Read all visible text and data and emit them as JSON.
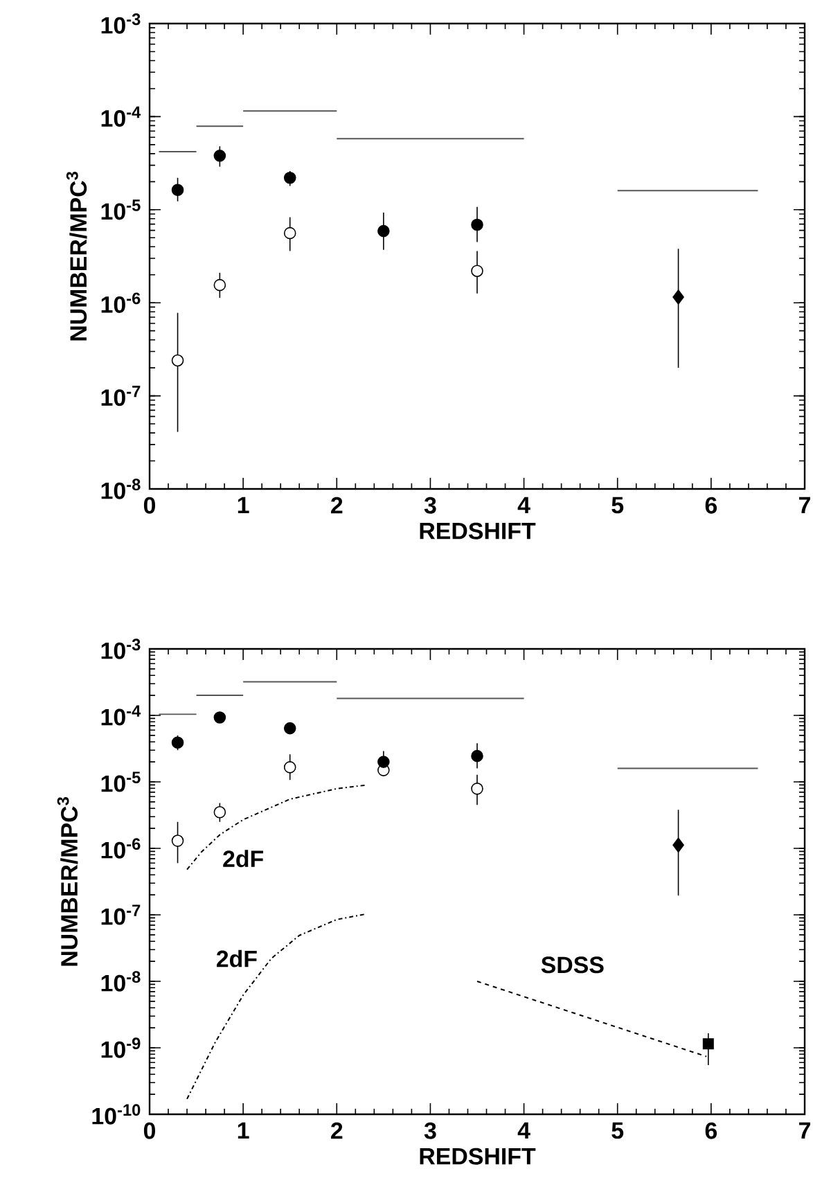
{
  "chart_data": [
    {
      "type": "scatter",
      "xlabel": "REDSHIFT",
      "ylabel": "NUMBER/MPC$^{3}$",
      "log": "y",
      "xlim": [
        0,
        7
      ],
      "xticks": [
        0,
        1,
        2,
        3,
        4,
        5,
        6,
        7
      ],
      "ylim": [
        1e-08,
        0.001
      ],
      "yticks": [
        {
          "value": 1e-08,
          "label": "10$^{-8}$"
        },
        {
          "value": 1e-07,
          "label": "10$^{-7}$"
        },
        {
          "value": 1e-06,
          "label": "10$^{-6}$"
        },
        {
          "value": 1e-05,
          "label": "10$^{-5}$"
        },
        {
          "value": 0.0001,
          "label": "10$^{-4}$"
        },
        {
          "value": 0.001,
          "label": "10$^{-3}$"
        }
      ],
      "series": [
        {
          "type": "line",
          "marker": "none",
          "color": "#555555",
          "x": [
            0.1,
            0.5
          ],
          "values": [
            4.2e-05,
            4.2e-05
          ]
        },
        {
          "type": "line",
          "marker": "none",
          "color": "#555555",
          "x": [
            0.5,
            1.0
          ],
          "values": [
            7.9e-05,
            7.9e-05
          ]
        },
        {
          "type": "line",
          "marker": "none",
          "color": "#555555",
          "x": [
            1.0,
            2.0
          ],
          "values": [
            0.000115,
            0.000115
          ]
        },
        {
          "type": "line",
          "marker": "none",
          "color": "#555555",
          "x": [
            2.0,
            4.0
          ],
          "values": [
            5.8e-05,
            5.8e-05
          ]
        },
        {
          "type": "line",
          "marker": "none",
          "color": "#555555",
          "x": [
            5.0,
            6.5
          ],
          "values": [
            1.6e-05,
            1.6e-05
          ]
        },
        {
          "marker": "circle",
          "color": "#ffffff",
          "x": [
            0.3,
            0.75,
            1.5,
            2.5,
            3.5
          ],
          "values": [
            2.4e-07,
            1.55e-06,
            5.6e-06,
            null,
            2.2e-06
          ],
          "errors": [
            [
              4.1e-08,
              7.8e-07
            ],
            [
              1.13e-06,
              2.1e-06
            ],
            [
              3.6e-06,
              8.3e-06
            ],
            null,
            [
              1.26e-06,
              3.6e-06
            ]
          ]
        },
        {
          "marker": "circle",
          "color": "#000000",
          "x": [
            0.3,
            0.75,
            1.5,
            2.5,
            3.5
          ],
          "values": [
            1.63e-05,
            3.8e-05,
            2.2e-05,
            5.9e-06,
            6.9e-06
          ],
          "errors": [
            [
              1.23e-05,
              2.2e-05
            ],
            [
              2.9e-05,
              4.8e-05
            ],
            [
              1.8e-05,
              2.6e-05
            ],
            [
              3.7e-06,
              9.3e-06
            ],
            [
              4.5e-06,
              1.07e-05
            ]
          ]
        },
        {
          "marker": "diamond",
          "color": "#000000",
          "x": [
            5.65
          ],
          "values": [
            1.15e-06
          ],
          "errors": [
            [
              2e-07,
              3.8e-06
            ]
          ]
        }
      ]
    },
    {
      "type": "scatter",
      "xlabel": "REDSHIFT",
      "ylabel": "NUMBER/MPC$^{3}$",
      "log": "y",
      "xlim": [
        0,
        7
      ],
      "xticks": [
        0,
        1,
        2,
        3,
        4,
        5,
        6,
        7
      ],
      "ylim": [
        1e-10,
        0.001
      ],
      "yticks": [
        {
          "value": 1e-10,
          "label": "10$^{-10}$"
        },
        {
          "value": 1e-09,
          "label": "10$^{-9}$"
        },
        {
          "value": 1e-08,
          "label": "10$^{-8}$"
        },
        {
          "value": 1e-07,
          "label": "10$^{-7}$"
        },
        {
          "value": 1e-06,
          "label": "10$^{-6}$"
        },
        {
          "value": 1e-05,
          "label": "10$^{-5}$"
        },
        {
          "value": 0.0001,
          "label": "10$^{-4}$"
        },
        {
          "value": 0.001,
          "label": "10$^{-3}$"
        }
      ],
      "series": [
        {
          "type": "line",
          "marker": "none",
          "color": "#555555",
          "x": [
            0.1,
            0.5
          ],
          "values": [
            0.000104,
            0.000104
          ]
        },
        {
          "type": "line",
          "marker": "none",
          "color": "#555555",
          "x": [
            0.5,
            1.0
          ],
          "values": [
            0.0002,
            0.0002
          ]
        },
        {
          "type": "line",
          "marker": "none",
          "color": "#555555",
          "x": [
            1.0,
            2.0
          ],
          "values": [
            0.00032,
            0.00032
          ]
        },
        {
          "type": "line",
          "marker": "none",
          "color": "#555555",
          "x": [
            2.0,
            4.0
          ],
          "values": [
            0.00018,
            0.00018
          ]
        },
        {
          "type": "line",
          "marker": "none",
          "color": "#555555",
          "x": [
            5.0,
            6.5
          ],
          "values": [
            1.6e-05,
            1.6e-05
          ]
        },
        {
          "type": "line",
          "name": "2dF",
          "marker": "none",
          "line_style": "dashdot",
          "color": "#000000",
          "x": [
            0.4,
            0.55,
            0.75,
            1.0,
            1.5,
            2.0,
            2.3
          ],
          "values": [
            4.8e-07,
            8.7e-07,
            1.6e-06,
            2.7e-06,
            5.5e-06,
            7.9e-06,
            8.9e-06
          ]
        },
        {
          "type": "line",
          "name": "2dF",
          "marker": "none",
          "line_style": "dashdot",
          "color": "#000000",
          "x": [
            0.4,
            0.7,
            1.0,
            1.3,
            1.6,
            2.0,
            2.3
          ],
          "values": [
            1.7e-10,
            1.2e-09,
            6.2e-09,
            2.2e-08,
            4.9e-08,
            8.5e-08,
            1.02e-07
          ]
        },
        {
          "type": "line",
          "name": "SDSS",
          "marker": "none",
          "line_style": "dashed",
          "color": "#000000",
          "x": [
            3.5,
            5.95
          ],
          "values": [
            1e-08,
            7.4e-10
          ]
        },
        {
          "marker": "circle",
          "color": "#ffffff",
          "x": [
            0.3,
            0.75,
            1.5,
            2.5,
            3.5
          ],
          "values": [
            1.3e-06,
            3.5e-06,
            1.66e-05,
            1.5e-05,
            7.9e-06
          ],
          "errors": [
            [
              6e-07,
              2.5e-06
            ],
            [
              2.5e-06,
              4.8e-06
            ],
            [
              1.07e-05,
              2.6e-05
            ],
            null,
            [
              4.5e-06,
              1.28e-05
            ]
          ]
        },
        {
          "marker": "circle",
          "color": "#000000",
          "x": [
            0.3,
            0.75,
            1.5,
            2.5,
            3.5
          ],
          "values": [
            3.9e-05,
            9.3e-05,
            6.4e-05,
            2e-05,
            2.45e-05
          ],
          "errors": [
            [
              3e-05,
              5e-05
            ],
            [
              7.8e-05,
              0.00011
            ],
            null,
            [
              1.4e-05,
              2.9e-05
            ],
            [
              1.6e-05,
              3.8e-05
            ]
          ]
        },
        {
          "marker": "diamond",
          "color": "#000000",
          "x": [
            5.65
          ],
          "values": [
            1.12e-06
          ],
          "errors": [
            [
              1.95e-07,
              3.8e-06
            ]
          ]
        },
        {
          "marker": "square",
          "color": "#000000",
          "x": [
            5.97
          ],
          "values": [
            1.15e-09
          ],
          "errors": [
            [
              5.5e-10,
              1.66e-09
            ]
          ]
        }
      ]
    }
  ]
}
